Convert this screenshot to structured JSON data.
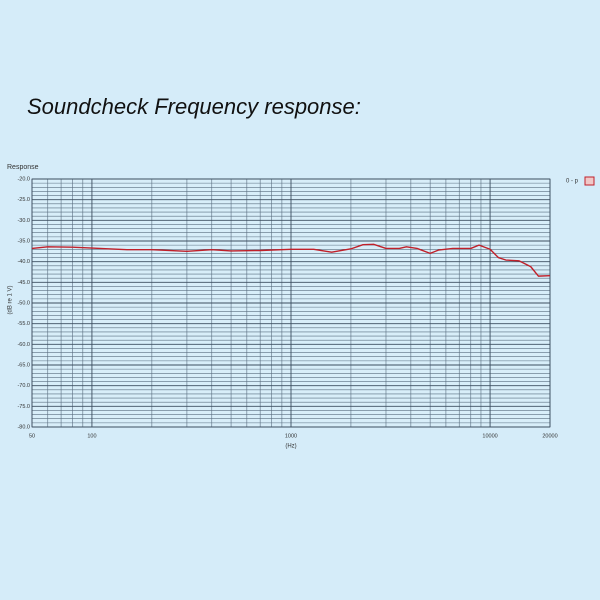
{
  "heading": "Soundcheck Frequency response:",
  "chart_data": {
    "type": "line",
    "title": "Response",
    "x_label": "(Hz)",
    "y_label": "(dB re 1 V)",
    "log_x": true,
    "grid": true,
    "legend": "top-right",
    "x": [
      50,
      60,
      80,
      100,
      150,
      200,
      300,
      400,
      500,
      700,
      1000,
      1300,
      1600,
      2000,
      2300,
      2600,
      3000,
      3500,
      3800,
      4300,
      5000,
      5500,
      6500,
      8000,
      8800,
      10000,
      11000,
      12000,
      14000,
      16000,
      17500,
      20000
    ],
    "series": [
      {
        "name": "0 - p",
        "color": "#c0202a",
        "values": [
          -36.8,
          -36.4,
          -36.5,
          -36.7,
          -37.1,
          -37.1,
          -37.5,
          -37.1,
          -37.4,
          -37.3,
          -37.0,
          -37.0,
          -37.7,
          -36.9,
          -35.9,
          -35.8,
          -36.8,
          -36.8,
          -36.4,
          -36.8,
          -38.0,
          -37.2,
          -36.8,
          -36.8,
          -36.0,
          -37.0,
          -39.0,
          -39.6,
          -39.8,
          -41.2,
          -43.5,
          -43.4
        ]
      }
    ],
    "xlim": [
      50,
      20000
    ],
    "xticks": [
      50,
      100,
      1000,
      10000,
      20000
    ],
    "minor_xticks": [
      60,
      70,
      80,
      90,
      200,
      300,
      400,
      500,
      600,
      700,
      800,
      900,
      2000,
      3000,
      4000,
      5000,
      6000,
      7000,
      8000,
      9000
    ],
    "ylim": [
      -80,
      -20
    ],
    "yticks": [
      {
        "value": -20,
        "label": "-20.0"
      },
      {
        "value": -25,
        "label": "-25.0"
      },
      {
        "value": -30,
        "label": "-30.0"
      },
      {
        "value": -35,
        "label": "-35.0"
      },
      {
        "value": -40,
        "label": "-40.0"
      },
      {
        "value": -45,
        "label": "-45.0"
      },
      {
        "value": -50,
        "label": "-50.0"
      },
      {
        "value": -55,
        "label": "-55.0"
      },
      {
        "value": -60,
        "label": "-60.0"
      },
      {
        "value": -65,
        "label": "-65.0"
      },
      {
        "value": -70,
        "label": "-70.0"
      },
      {
        "value": -75,
        "label": "-75.0"
      },
      {
        "value": -80,
        "label": "-80.0"
      }
    ],
    "minor_yticks": [
      -21,
      -22,
      -23,
      -24,
      -26,
      -27,
      -28,
      -29,
      -31,
      -32,
      -33,
      -34,
      -36,
      -37,
      -38,
      -39,
      -41,
      -42,
      -43,
      -44,
      -46,
      -47,
      -48,
      -49,
      -51,
      -52,
      -53,
      -54,
      -56,
      -57,
      -58,
      -59,
      -61,
      -62,
      -63,
      -64,
      -66,
      -67,
      -68,
      -69,
      -71,
      -72,
      -73,
      -74,
      -76,
      -77,
      -78,
      -79
    ]
  }
}
